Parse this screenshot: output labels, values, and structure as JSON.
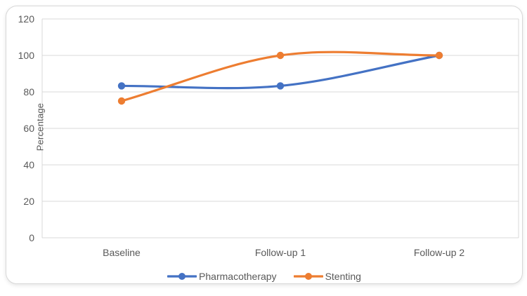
{
  "chart_data": {
    "type": "line",
    "categories": [
      "Baseline",
      "Follow-up 1",
      "Follow-up 2"
    ],
    "series": [
      {
        "name": "Pharmacotherapy",
        "color": "#4472C4",
        "values": [
          83.3,
          83.3,
          100
        ]
      },
      {
        "name": "Stenting",
        "color": "#ED7D31",
        "values": [
          75,
          100,
          100
        ]
      }
    ],
    "title": "",
    "xlabel": "",
    "ylabel": "Percentage",
    "ylim": [
      0,
      120
    ],
    "yticks": [
      0,
      20,
      40,
      60,
      80,
      100,
      120
    ],
    "grid": true,
    "smooth": true,
    "marker": "circle",
    "legend_position": "bottom"
  },
  "styles": {
    "text_color": "#595959",
    "grid_color": "#D9D9D9",
    "axis_color": "#D9D9D9",
    "card_border": "#D8D8D8",
    "background": "#FFFFFF"
  }
}
